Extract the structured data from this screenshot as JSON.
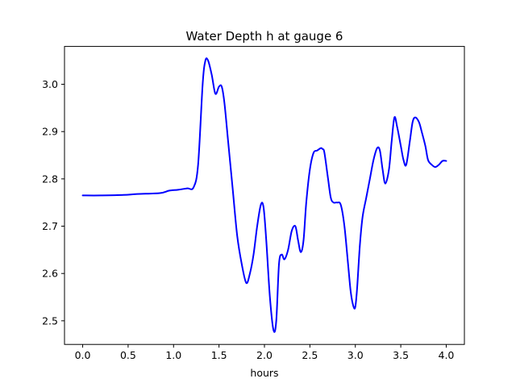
{
  "chart_data": {
    "type": "line",
    "title": "Water Depth h at gauge 6",
    "xlabel": "hours",
    "ylabel": "",
    "xlim": [
      -0.2,
      4.2
    ],
    "ylim": [
      2.45,
      3.08
    ],
    "grid": false,
    "line_color": "#0000ff",
    "x_ticks": [
      {
        "value": 0.0,
        "label": "0.0"
      },
      {
        "value": 0.5,
        "label": "0.5"
      },
      {
        "value": 1.0,
        "label": "1.0"
      },
      {
        "value": 1.5,
        "label": "1.5"
      },
      {
        "value": 2.0,
        "label": "2.0"
      },
      {
        "value": 2.5,
        "label": "2.5"
      },
      {
        "value": 3.0,
        "label": "3.0"
      },
      {
        "value": 3.5,
        "label": "3.5"
      },
      {
        "value": 4.0,
        "label": "4.0"
      }
    ],
    "y_ticks": [
      {
        "value": 2.5,
        "label": "2.5"
      },
      {
        "value": 2.6,
        "label": "2.6"
      },
      {
        "value": 2.7,
        "label": "2.7"
      },
      {
        "value": 2.8,
        "label": "2.8"
      },
      {
        "value": 2.9,
        "label": "2.9"
      },
      {
        "value": 3.0,
        "label": "3.0"
      }
    ],
    "series": [
      {
        "x": [
          0.0,
          0.2,
          0.45,
          0.6,
          0.85,
          0.95,
          1.05,
          1.15,
          1.22,
          1.27,
          1.32,
          1.35,
          1.38,
          1.42,
          1.46,
          1.5,
          1.53,
          1.56,
          1.6,
          1.65,
          1.7,
          1.75,
          1.8,
          1.84,
          1.88,
          1.92,
          1.96,
          1.99,
          2.02,
          2.06,
          2.1,
          2.13,
          2.16,
          2.19,
          2.22,
          2.26,
          2.3,
          2.34,
          2.37,
          2.4,
          2.43,
          2.46,
          2.5,
          2.54,
          2.58,
          2.62,
          2.64,
          2.66,
          2.7,
          2.73,
          2.76,
          2.8,
          2.84,
          2.88,
          2.92,
          2.95,
          2.98,
          3.0,
          3.02,
          3.05,
          3.08,
          3.12,
          3.16,
          3.2,
          3.24,
          3.27,
          3.3,
          3.33,
          3.37,
          3.4,
          3.43,
          3.46,
          3.5,
          3.53,
          3.56,
          3.6,
          3.63,
          3.66,
          3.7,
          3.73,
          3.77,
          3.8,
          3.84,
          3.88,
          3.92,
          3.96,
          4.0
        ],
        "y": [
          2.765,
          2.765,
          2.766,
          2.768,
          2.77,
          2.775,
          2.777,
          2.78,
          2.782,
          2.83,
          3.0,
          3.05,
          3.05,
          3.02,
          2.98,
          2.995,
          2.995,
          2.96,
          2.88,
          2.78,
          2.68,
          2.62,
          2.58,
          2.6,
          2.64,
          2.7,
          2.745,
          2.74,
          2.67,
          2.55,
          2.48,
          2.5,
          2.62,
          2.64,
          2.63,
          2.65,
          2.69,
          2.7,
          2.67,
          2.645,
          2.67,
          2.75,
          2.82,
          2.855,
          2.86,
          2.865,
          2.863,
          2.855,
          2.8,
          2.76,
          2.75,
          2.75,
          2.745,
          2.7,
          2.62,
          2.56,
          2.53,
          2.53,
          2.57,
          2.66,
          2.72,
          2.76,
          2.8,
          2.84,
          2.865,
          2.86,
          2.82,
          2.79,
          2.82,
          2.88,
          2.93,
          2.91,
          2.87,
          2.84,
          2.83,
          2.88,
          2.92,
          2.93,
          2.92,
          2.9,
          2.87,
          2.84,
          2.83,
          2.825,
          2.83,
          2.838,
          2.838
        ]
      }
    ]
  }
}
